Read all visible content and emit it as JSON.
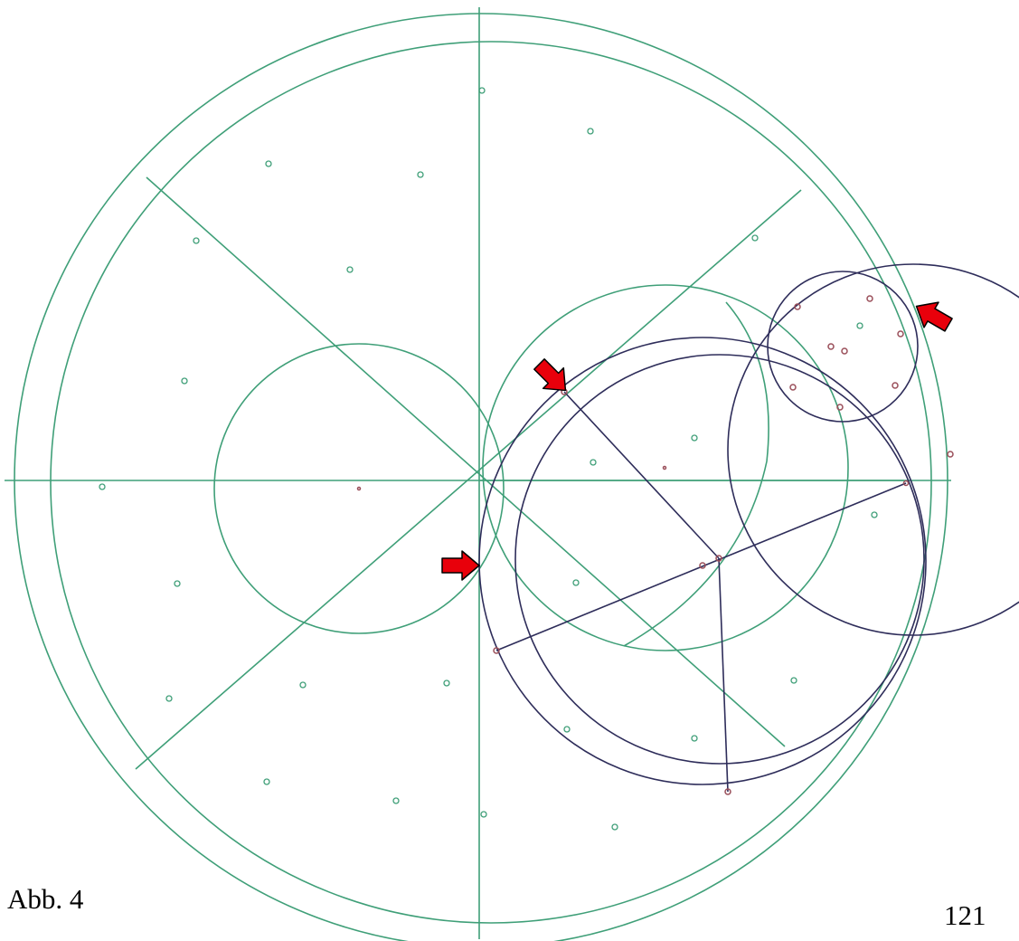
{
  "figure": {
    "caption": "Abb. 4",
    "page_number": "121"
  },
  "colors": {
    "construction": "#3f9f78",
    "highlight": "#2e2d5a",
    "point": "#9a4f5a",
    "arrow_fill": "#e8000b",
    "arrow_stroke": "#000000",
    "text": "#000000"
  },
  "icons": {
    "marker": "red-arrow-icon"
  }
}
